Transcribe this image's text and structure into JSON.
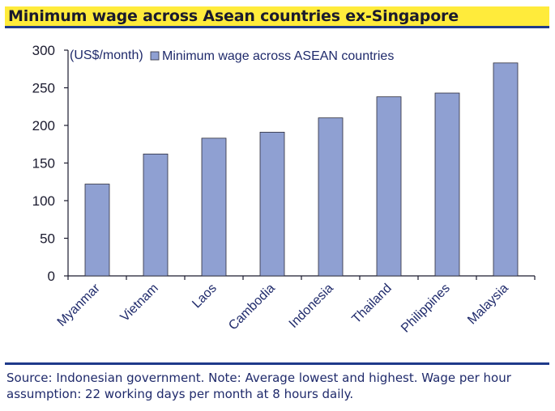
{
  "title": "Minimum wage across Asean countries ex-Singapore",
  "source": "Source: Indonesian government. Note: Average lowest and highest. Wage per hour assumption: 22 working days per month at 8 hours daily.",
  "colors": {
    "bar": "#8fa0d2",
    "bar_stroke": "#2b2b3a",
    "title_bg": "#ffeb3b",
    "rule": "#1f3a8a"
  },
  "chart_data": {
    "type": "bar",
    "categories": [
      "Myanmar",
      "Vietnam",
      "Laos",
      "Cambodia",
      "Indonesia",
      "Thailand",
      "Philippines",
      "Malaysia"
    ],
    "series": [
      {
        "name": "Minimum wage across ASEAN countries",
        "values": [
          122,
          162,
          183,
          191,
          210,
          238,
          243,
          283
        ]
      }
    ],
    "unit_label": "(US$/month)",
    "ylim": [
      0,
      300
    ],
    "yticks": [
      "0",
      "50",
      "100",
      "150",
      "200",
      "250",
      "300"
    ],
    "grid": false,
    "legend_position": "top"
  }
}
